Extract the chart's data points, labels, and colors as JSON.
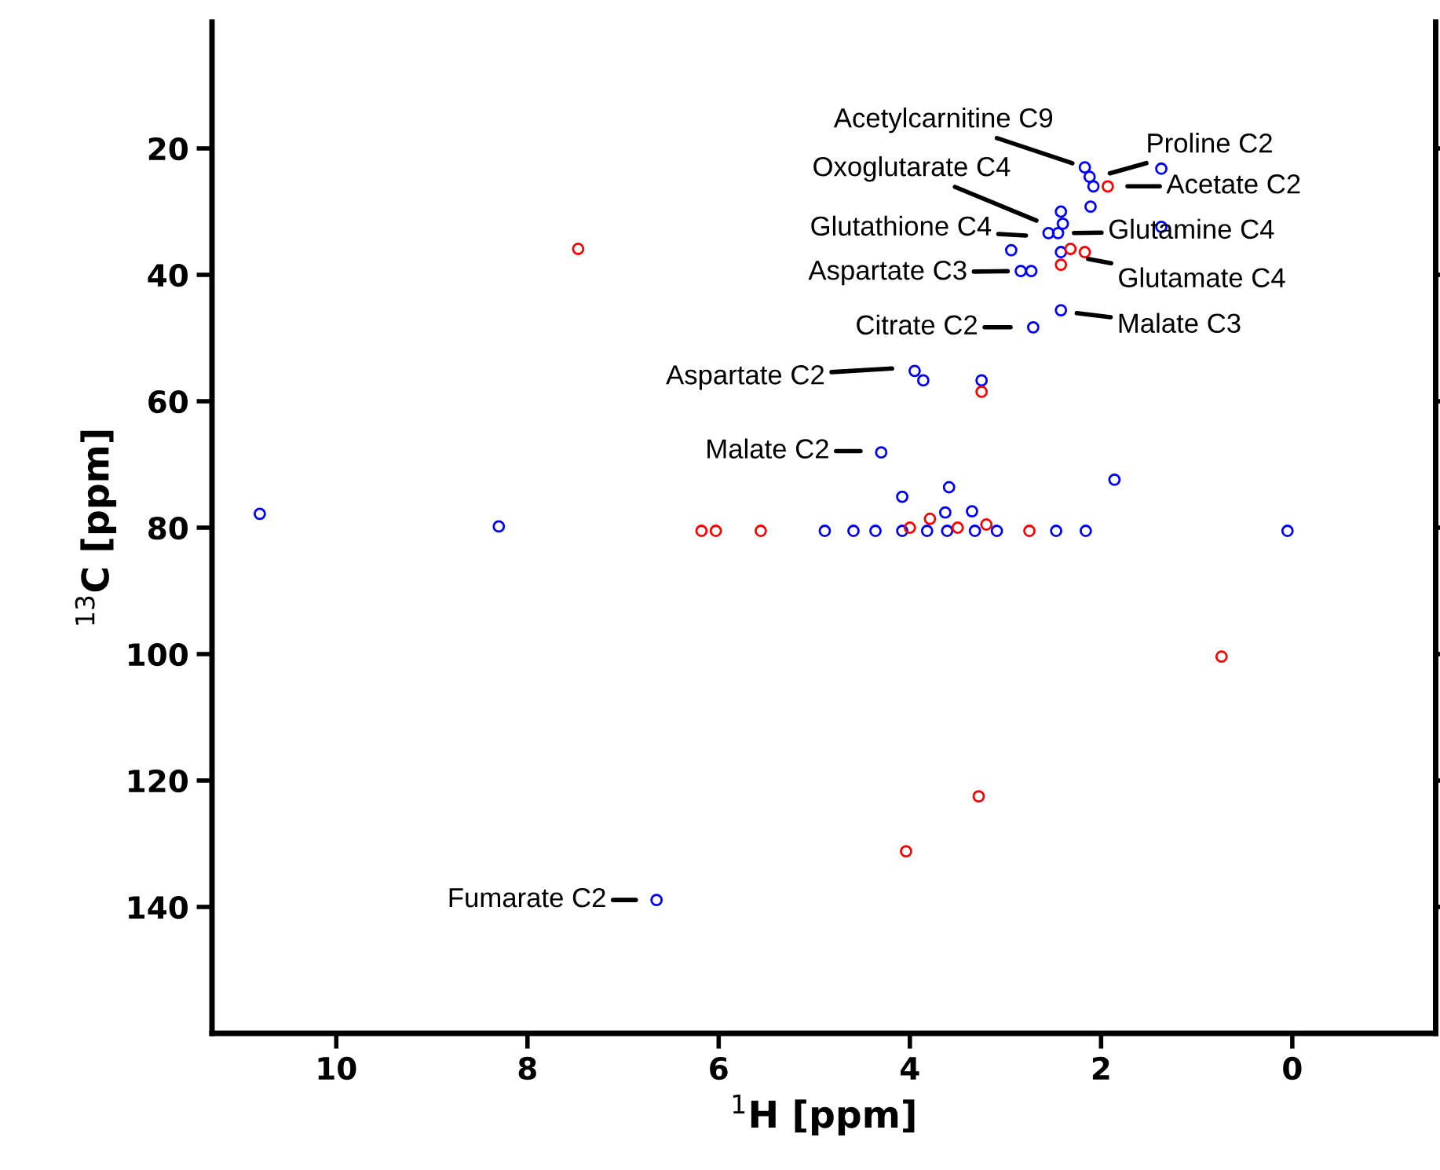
{
  "chart_data": {
    "type": "scatter",
    "xlabel": "$^{1}$H [ppm]",
    "ylabel": "$^{13}$C [ppm]",
    "xlim": [
      11.3,
      -1.5
    ],
    "xticks": [
      10,
      8,
      6,
      4,
      2,
      0
    ],
    "ylim": [
      160,
      0
    ],
    "yticks": [
      20,
      40,
      60,
      80,
      100,
      120,
      140
    ],
    "grid": false,
    "legend": false,
    "marker": "circle",
    "series": [
      {
        "color": "#0000ff",
        "x": [
          2.17,
          2.12,
          2.08,
          2.11,
          1.37,
          1.37,
          2.42,
          2.4,
          2.55,
          2.45,
          2.42,
          2.94,
          2.84,
          2.73,
          2.71,
          2.42,
          3.95,
          3.86,
          3.25,
          4.3,
          4.08,
          3.59,
          3.63,
          3.35,
          1.86,
          10.8,
          8.3,
          4.89,
          4.59,
          4.36,
          4.08,
          3.82,
          3.61,
          3.32,
          3.09,
          2.47,
          2.16,
          0.05,
          6.65
        ],
        "values": [
          23,
          24.5,
          26,
          29.2,
          23.2,
          32.4,
          30,
          31.9,
          33.4,
          33.4,
          36.4,
          36.1,
          39.4,
          39.4,
          48.3,
          45.6,
          55.2,
          56.7,
          56.7,
          68.1,
          75.1,
          73.6,
          77.6,
          77.4,
          72.4,
          77.8,
          79.8,
          80.5,
          80.5,
          80.5,
          80.5,
          80.5,
          80.5,
          80.5,
          80.5,
          80.5,
          80.5,
          80.5,
          138.9
        ]
      },
      {
        "color": "#ff0000",
        "x": [
          1.93,
          2.32,
          2.17,
          2.42,
          7.47,
          3.25,
          6.18,
          6.03,
          5.56,
          4.0,
          3.79,
          3.5,
          3.2,
          2.75,
          0.74,
          3.28,
          4.04
        ],
        "values": [
          26,
          35.9,
          36.4,
          38.4,
          35.9,
          58.5,
          80.5,
          80.5,
          80.5,
          80,
          78.6,
          80,
          79.5,
          80.5,
          100.4,
          122.5,
          131.2
        ]
      }
    ],
    "annotations": [
      {
        "text": "Acetylcarnitine C9",
        "x": 2.17,
        "y": 23
      },
      {
        "text": "Proline C2",
        "x": 2.04,
        "y": 24.5
      },
      {
        "text": "Acetate C2",
        "x": 1.86,
        "y": 26
      },
      {
        "text": "Oxoglutarate C4",
        "x": 2.55,
        "y": 32.2
      },
      {
        "text": "Glutathione C4",
        "x": 2.65,
        "y": 33.9
      },
      {
        "text": "Glutamine C4",
        "x": 2.42,
        "y": 33.4
      },
      {
        "text": "Glutamate C4",
        "x": 2.27,
        "y": 37.1
      },
      {
        "text": "Aspartate C3",
        "x": 2.84,
        "y": 39.4
      },
      {
        "text": "Malate C3",
        "x": 2.39,
        "y": 45.8
      },
      {
        "text": "Citrate C2",
        "x": 2.81,
        "y": 48.3
      },
      {
        "text": "Aspartate C2",
        "x": 4.05,
        "y": 54.7
      },
      {
        "text": "Malate C2",
        "x": 4.38,
        "y": 67.9
      },
      {
        "text": "Fumarate C2",
        "x": 6.73,
        "y": 138.9
      }
    ]
  }
}
